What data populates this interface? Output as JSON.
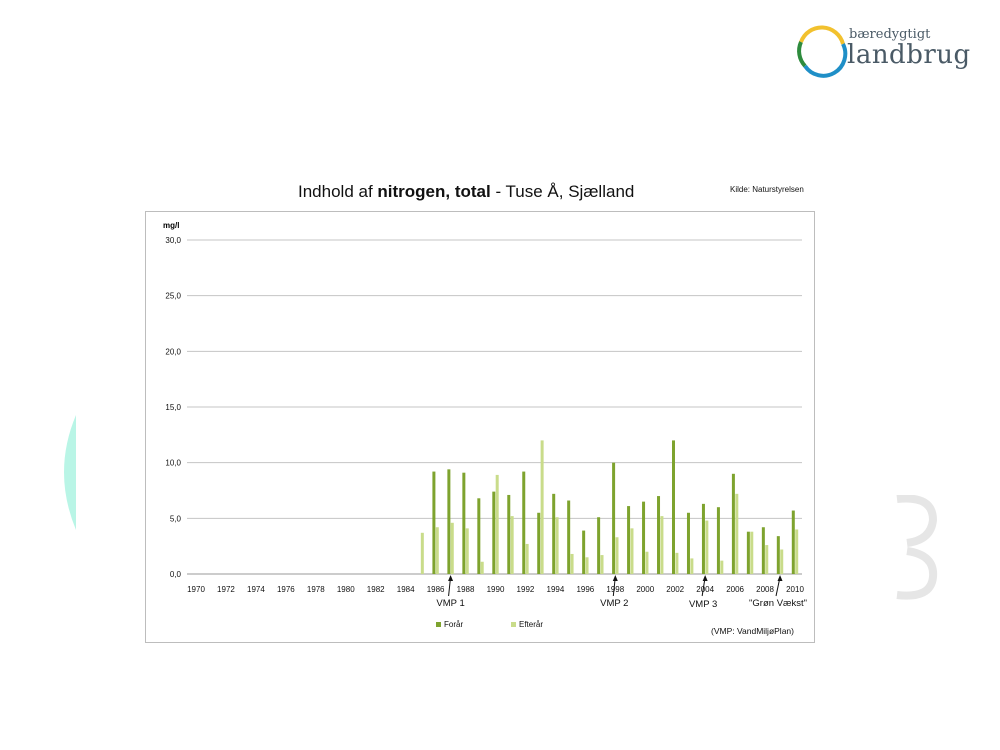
{
  "logo": {
    "line1": "bæredygtigt",
    "line2": "landbrug",
    "colors": {
      "yellow": "#f2c12e",
      "green": "#2e8b3d",
      "blue": "#1f8fc7"
    }
  },
  "chart_data": {
    "type": "bar",
    "title_prefix": "Indhold af ",
    "title_bold": "nitrogen, total",
    "title_suffix": " - Tuse Å, Sjælland",
    "source": "Kilde: Naturstyrelsen",
    "ylabel": "mg/l",
    "ylim": [
      0,
      30
    ],
    "yticks": [
      "0,0",
      "5,0",
      "10,0",
      "15,0",
      "20,0",
      "25,0",
      "30,0"
    ],
    "categories": [
      1970,
      1971,
      1972,
      1973,
      1974,
      1975,
      1976,
      1977,
      1978,
      1979,
      1980,
      1981,
      1982,
      1983,
      1984,
      1985,
      1986,
      1987,
      1988,
      1989,
      1990,
      1991,
      1992,
      1993,
      1994,
      1995,
      1996,
      1997,
      1998,
      1999,
      2000,
      2001,
      2002,
      2003,
      2004,
      2005,
      2006,
      2007,
      2008,
      2009,
      2010
    ],
    "xtick_labels": [
      "1970",
      "1972",
      "1974",
      "1976",
      "1978",
      "1980",
      "1982",
      "1984",
      "1986",
      "1988",
      "1990",
      "1992",
      "1994",
      "1996",
      "1998",
      "2000",
      "2002",
      "2004",
      "2006",
      "2008",
      "2010"
    ],
    "series": [
      {
        "name": "Forår",
        "color": "#7ea32e",
        "values": [
          null,
          null,
          null,
          null,
          null,
          null,
          null,
          null,
          null,
          null,
          null,
          null,
          null,
          null,
          null,
          null,
          9.2,
          9.4,
          9.1,
          6.8,
          7.4,
          7.1,
          9.2,
          5.5,
          7.2,
          6.6,
          3.9,
          5.1,
          10.0,
          6.1,
          6.5,
          7.0,
          12.0,
          5.5,
          6.3,
          6.0,
          9.0,
          3.8,
          4.2,
          3.4,
          5.7
        ]
      },
      {
        "name": "Efterår",
        "color": "#c9dc8a",
        "values": [
          null,
          null,
          null,
          null,
          null,
          null,
          null,
          null,
          null,
          null,
          null,
          null,
          null,
          null,
          null,
          3.7,
          4.2,
          4.6,
          4.1,
          1.1,
          8.9,
          5.2,
          2.7,
          12.0,
          5.1,
          1.8,
          1.5,
          1.7,
          3.3,
          4.1,
          2.0,
          5.2,
          1.9,
          1.4,
          4.8,
          1.2,
          7.2,
          3.8,
          2.6,
          2.2,
          4.0
        ]
      }
    ],
    "annotations": [
      {
        "text": "VMP 1",
        "year": 1987
      },
      {
        "text": "VMP 2",
        "year": 1998
      },
      {
        "text": "VMP 3",
        "year": 2004
      },
      {
        "text": "\"Grøn Vækst\"",
        "year": 2009
      }
    ],
    "note": "(VMP: VandMiljøPlan)",
    "grid": true,
    "legend_position": "bottom"
  }
}
